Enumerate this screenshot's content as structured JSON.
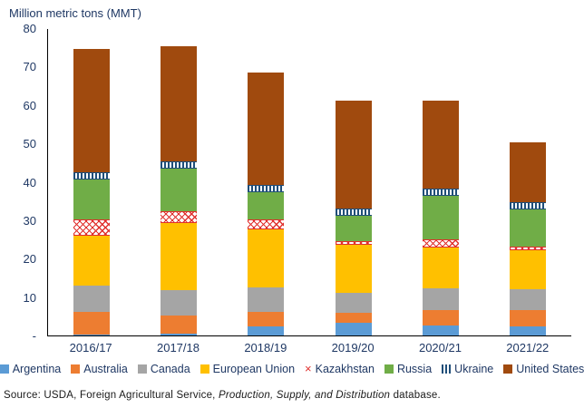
{
  "figure": {
    "title": "Million metric tons (MMT)",
    "source": {
      "prefix": "Source: USDA, Foreign Agricultural Service, ",
      "italic": "Production, Supply, and Distribution",
      "suffix": " database."
    }
  },
  "colors": {
    "axis_text": "#1F3864",
    "axis_line": "#000000",
    "source_text": "#1a1a1a"
  },
  "chart_data": {
    "type": "bar",
    "stacked": true,
    "title": "Million metric tons (MMT)",
    "xlabel": "",
    "ylabel": "Million metric tons (MMT)",
    "ylim": [
      0,
      80
    ],
    "ytick_values": [
      80,
      70,
      60,
      50,
      40,
      30,
      20,
      10,
      0
    ],
    "ytick_labels": [
      "80",
      "70",
      "60",
      "50",
      "40",
      "30",
      "20",
      "10",
      "-"
    ],
    "grid": false,
    "legend_position": "bottom",
    "categories": [
      "2016/17",
      "2017/18",
      "2018/19",
      "2019/20",
      "2020/21",
      "2021/22"
    ],
    "series": [
      {
        "name": "Argentina",
        "color": "#5B9BD5",
        "pattern": "solid",
        "values": [
          0.3,
          0.5,
          2.3,
          3.4,
          2.7,
          2.3
        ]
      },
      {
        "name": "Australia",
        "color": "#ED7D31",
        "pattern": "solid",
        "values": [
          5.8,
          4.8,
          3.9,
          2.5,
          3.8,
          4.3
        ]
      },
      {
        "name": "Canada",
        "color": "#A5A5A5",
        "pattern": "solid",
        "values": [
          6.9,
          6.6,
          6.3,
          5.2,
          5.8,
          5.5
        ]
      },
      {
        "name": "European Union",
        "color": "#FFC000",
        "pattern": "solid",
        "values": [
          13.0,
          17.3,
          15.1,
          12.4,
          10.5,
          10.0
        ]
      },
      {
        "name": "Kazakhstan",
        "color": "#E0312E",
        "pattern": "cross",
        "values": [
          4.2,
          3.1,
          2.6,
          1.1,
          2.2,
          1.0
        ]
      },
      {
        "name": "Russia",
        "color": "#70AD47",
        "pattern": "solid",
        "values": [
          10.3,
          11.2,
          7.0,
          6.5,
          11.3,
          9.6
        ]
      },
      {
        "name": "Ukraine",
        "color": "#1F4E79",
        "pattern": "vstripe",
        "values": [
          2.0,
          1.8,
          2.0,
          1.9,
          1.9,
          2.0
        ]
      },
      {
        "name": "United States",
        "color": "#A04A0E",
        "pattern": "solid",
        "values": [
          32.0,
          29.9,
          29.3,
          28.2,
          22.9,
          15.6
        ]
      }
    ]
  }
}
